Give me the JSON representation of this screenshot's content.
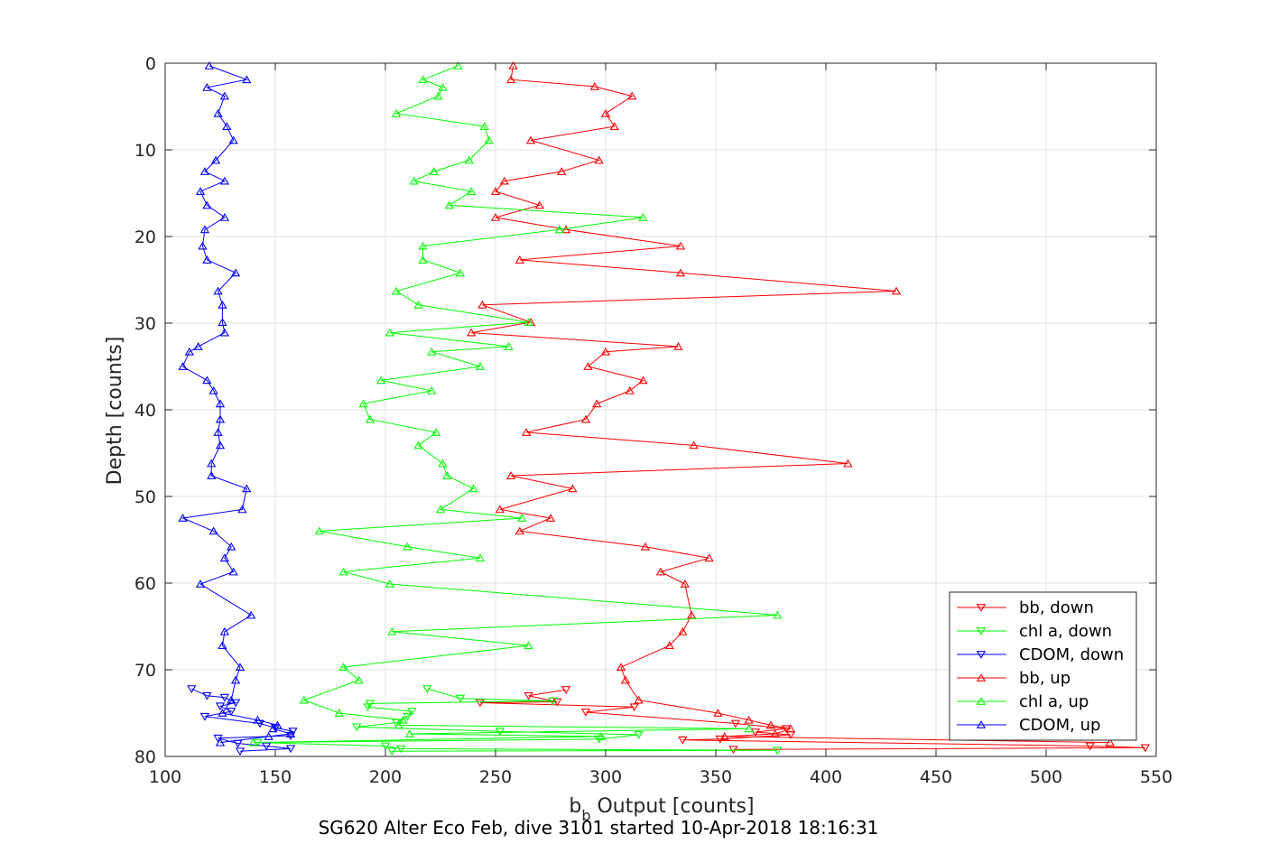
{
  "chart_data": {
    "type": "line",
    "caption": "SG620 Alter Eco Feb, dive 3101 started 10-Apr-2018 18:16:31",
    "xlabel_main": "b",
    "xlabel_sub": "b",
    "xlabel_rest": " Output [counts]",
    "ylabel": "Depth [counts]",
    "xlim": [
      100,
      550
    ],
    "ylim": [
      0,
      80
    ],
    "y_reversed": true,
    "grid": true,
    "legend_position": "bottom-right",
    "xticks": [
      100,
      150,
      200,
      250,
      300,
      350,
      400,
      450,
      500,
      550
    ],
    "yticks": [
      0,
      10,
      20,
      30,
      40,
      50,
      60,
      70,
      80
    ],
    "series": [
      {
        "name": "bb, down",
        "color": "#ff0000",
        "marker": "triangle-down",
        "points": [
          [
            282,
            72.3
          ],
          [
            265,
            73
          ],
          [
            278,
            73.7
          ],
          [
            243,
            73.8
          ],
          [
            313,
            74.3
          ],
          [
            291,
            74.9
          ],
          [
            359,
            76.2
          ],
          [
            382,
            76.8
          ],
          [
            368,
            77.2
          ],
          [
            384,
            77.5
          ],
          [
            352,
            78
          ],
          [
            335,
            78.1
          ],
          [
            520,
            78.8
          ],
          [
            545,
            79
          ],
          [
            358,
            79.2
          ]
        ]
      },
      {
        "name": "chl a, down",
        "color": "#00ff00",
        "marker": "triangle-down",
        "points": [
          [
            219,
            72.2
          ],
          [
            234,
            73.3
          ],
          [
            276,
            73.6
          ],
          [
            193,
            73.9
          ],
          [
            192,
            74.3
          ],
          [
            212,
            74.8
          ],
          [
            210,
            75.4
          ],
          [
            205,
            76.1
          ],
          [
            187,
            76.6
          ],
          [
            252,
            77.1
          ],
          [
            315,
            77.5
          ],
          [
            297,
            78
          ],
          [
            142,
            78.4
          ],
          [
            200,
            78.8
          ],
          [
            207,
            79.1
          ],
          [
            378,
            79.3
          ],
          [
            203,
            79.4
          ]
        ]
      },
      {
        "name": "CDOM, down",
        "color": "#0000ff",
        "marker": "triangle-down",
        "points": [
          [
            112,
            72.2
          ],
          [
            119,
            73
          ],
          [
            127,
            73.2
          ],
          [
            132,
            73.8
          ],
          [
            125,
            74.2
          ],
          [
            130,
            74.8
          ],
          [
            118,
            75.4
          ],
          [
            143,
            76.2
          ],
          [
            150,
            76.7
          ],
          [
            158,
            77.1
          ],
          [
            157,
            77.6
          ],
          [
            124,
            77.9
          ],
          [
            133,
            78.5
          ],
          [
            146,
            78.8
          ],
          [
            157,
            79.1
          ],
          [
            134,
            79.4
          ]
        ]
      },
      {
        "name": "bb, up",
        "color": "#ff0000",
        "marker": "triangle-up",
        "points": [
          [
            258,
            0.3
          ],
          [
            257,
            1.9
          ],
          [
            295,
            2.7
          ],
          [
            312,
            3.8
          ],
          [
            300,
            5.8
          ],
          [
            304,
            7.3
          ],
          [
            266,
            8.9
          ],
          [
            297,
            11.2
          ],
          [
            280,
            12.5
          ],
          [
            254,
            13.6
          ],
          [
            250,
            14.8
          ],
          [
            270,
            16.4
          ],
          [
            250,
            17.8
          ],
          [
            282,
            19.2
          ],
          [
            334,
            21.1
          ],
          [
            261,
            22.7
          ],
          [
            334,
            24.2
          ],
          [
            432,
            26.3
          ],
          [
            244,
            27.9
          ],
          [
            266,
            29.9
          ],
          [
            239,
            31.1
          ],
          [
            333,
            32.7
          ],
          [
            300,
            33.3
          ],
          [
            292,
            35
          ],
          [
            317,
            36.6
          ],
          [
            311,
            37.8
          ],
          [
            296,
            39.3
          ],
          [
            291,
            41.1
          ],
          [
            264,
            42.6
          ],
          [
            340,
            44.1
          ],
          [
            410,
            46.2
          ],
          [
            257,
            47.6
          ],
          [
            285,
            49.1
          ],
          [
            252,
            51.5
          ],
          [
            275,
            52.5
          ],
          [
            261,
            54
          ],
          [
            318,
            55.8
          ],
          [
            347,
            57.1
          ],
          [
            325,
            58.7
          ],
          [
            336,
            60.1
          ],
          [
            339,
            63.7
          ],
          [
            335,
            65.6
          ],
          [
            329,
            67.2
          ],
          [
            307,
            69.7
          ],
          [
            309,
            71.2
          ],
          [
            315,
            73.5
          ],
          [
            351,
            75
          ],
          [
            365,
            75.8
          ],
          [
            375,
            76.4
          ],
          [
            384,
            76.8
          ],
          [
            377,
            77.4
          ],
          [
            354,
            77.7
          ],
          [
            529,
            78.4
          ]
        ]
      },
      {
        "name": "chl a, up",
        "color": "#00ff00",
        "marker": "triangle-up",
        "points": [
          [
            233,
            0.3
          ],
          [
            217,
            1.9
          ],
          [
            226,
            2.8
          ],
          [
            224,
            3.8
          ],
          [
            205,
            5.8
          ],
          [
            245,
            7.3
          ],
          [
            247,
            8.9
          ],
          [
            238,
            11.2
          ],
          [
            222,
            12.5
          ],
          [
            213,
            13.6
          ],
          [
            239,
            14.8
          ],
          [
            229,
            16.4
          ],
          [
            317,
            17.8
          ],
          [
            279,
            19.2
          ],
          [
            217,
            21.1
          ],
          [
            217,
            22.7
          ],
          [
            234,
            24.2
          ],
          [
            205,
            26.3
          ],
          [
            215,
            27.9
          ],
          [
            265,
            29.9
          ],
          [
            202,
            31.1
          ],
          [
            256,
            32.7
          ],
          [
            221,
            33.3
          ],
          [
            243,
            35
          ],
          [
            198,
            36.6
          ],
          [
            221,
            37.8
          ],
          [
            190,
            39.3
          ],
          [
            193,
            41.1
          ],
          [
            223,
            42.6
          ],
          [
            215,
            44.1
          ],
          [
            226,
            46.2
          ],
          [
            228,
            47.6
          ],
          [
            240,
            49.1
          ],
          [
            225,
            51.5
          ],
          [
            262,
            52.5
          ],
          [
            170,
            54
          ],
          [
            210,
            55.8
          ],
          [
            243,
            57.1
          ],
          [
            181,
            58.7
          ],
          [
            202,
            60.1
          ],
          [
            378,
            63.7
          ],
          [
            203,
            65.6
          ],
          [
            265,
            67.2
          ],
          [
            181,
            69.7
          ],
          [
            188,
            71.2
          ],
          [
            163,
            73.5
          ],
          [
            179,
            75
          ],
          [
            208,
            75.8
          ],
          [
            206,
            76.4
          ],
          [
            365,
            76.8
          ],
          [
            211,
            77.4
          ],
          [
            298,
            77.7
          ],
          [
            140,
            78.4
          ]
        ]
      },
      {
        "name": "CDOM, up",
        "color": "#0000ff",
        "marker": "triangle-up",
        "points": [
          [
            120,
            0.3
          ],
          [
            137,
            1.9
          ],
          [
            119,
            2.8
          ],
          [
            127,
            3.8
          ],
          [
            124,
            5.8
          ],
          [
            128,
            7.3
          ],
          [
            131,
            8.9
          ],
          [
            123,
            11.2
          ],
          [
            118,
            12.5
          ],
          [
            127,
            13.6
          ],
          [
            116,
            14.8
          ],
          [
            119,
            16.4
          ],
          [
            127,
            17.8
          ],
          [
            118,
            19.2
          ],
          [
            117,
            21.1
          ],
          [
            119,
            22.7
          ],
          [
            132,
            24.2
          ],
          [
            124,
            26.3
          ],
          [
            126,
            27.9
          ],
          [
            126,
            29.9
          ],
          [
            127,
            31.1
          ],
          [
            115,
            32.7
          ],
          [
            111,
            33.3
          ],
          [
            108,
            35
          ],
          [
            119,
            36.6
          ],
          [
            122,
            37.8
          ],
          [
            125,
            39.3
          ],
          [
            125,
            41.1
          ],
          [
            124,
            42.6
          ],
          [
            125,
            44.1
          ],
          [
            121,
            46.2
          ],
          [
            121,
            47.6
          ],
          [
            137,
            49.1
          ],
          [
            135,
            51.5
          ],
          [
            108,
            52.5
          ],
          [
            122,
            54
          ],
          [
            130,
            55.8
          ],
          [
            127,
            57.1
          ],
          [
            131,
            58.7
          ],
          [
            116,
            60.1
          ],
          [
            139,
            63.7
          ],
          [
            127,
            65.6
          ],
          [
            126,
            67.2
          ],
          [
            134,
            69.7
          ],
          [
            132,
            71.2
          ],
          [
            130,
            73.5
          ],
          [
            126,
            75
          ],
          [
            142,
            75.8
          ],
          [
            151,
            76.4
          ],
          [
            149,
            76.8
          ],
          [
            157,
            77.4
          ],
          [
            147,
            77.7
          ],
          [
            125,
            78.4
          ]
        ]
      }
    ]
  }
}
